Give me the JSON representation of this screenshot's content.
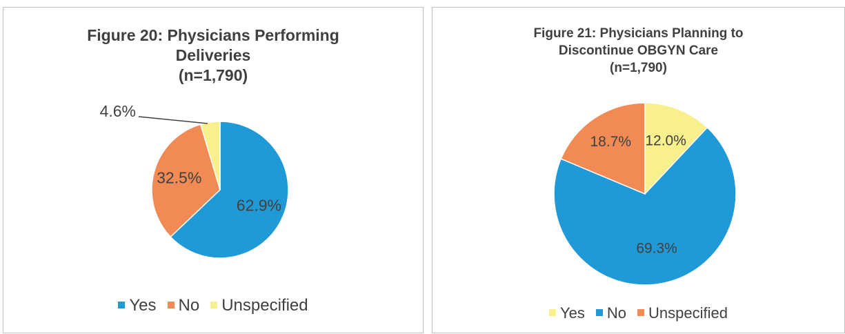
{
  "chart_data": [
    {
      "type": "pie",
      "title": [
        "Figure 20:  Physicians Performing",
        "Deliveries",
        "(n=1,790)"
      ],
      "slices": [
        {
          "name": "Yes",
          "value": 62.9,
          "label": "62.9%",
          "color": "#1f9ad6"
        },
        {
          "name": "No",
          "value": 32.5,
          "label": "32.5%",
          "color": "#f28a55"
        },
        {
          "name": "Unspecified",
          "value": 4.6,
          "label": "4.6%",
          "color": "#f8f08c"
        }
      ],
      "legend": [
        "Yes",
        "No",
        "Unspecified"
      ],
      "legend_position": "bottom"
    },
    {
      "type": "pie",
      "title": [
        "Figure 21:  Physicians Planning to",
        "Discontinue OBGYN Care",
        "(n=1,790)"
      ],
      "slices": [
        {
          "name": "Yes",
          "value": 12.0,
          "label": "12.0%",
          "color": "#f8f08c"
        },
        {
          "name": "No",
          "value": 69.3,
          "label": "69.3%",
          "color": "#1f9ad6"
        },
        {
          "name": "Unspecified",
          "value": 18.7,
          "label": "18.7%",
          "color": "#f28a55"
        }
      ],
      "legend": [
        "Yes",
        "No",
        "Unspecified"
      ],
      "legend_position": "bottom"
    }
  ]
}
